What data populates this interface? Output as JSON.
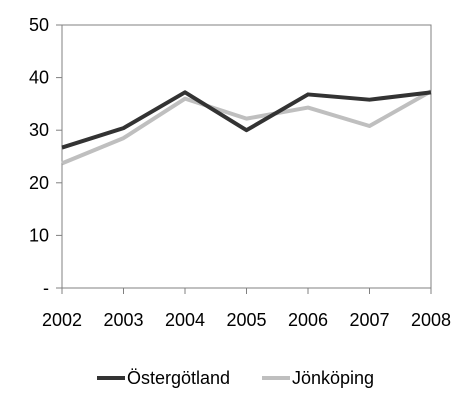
{
  "chart_data": {
    "type": "line",
    "title": "",
    "xlabel": "",
    "ylabel": "",
    "x": [
      2002,
      2003,
      2004,
      2005,
      2006,
      2007,
      2008
    ],
    "x_tick_labels": [
      "2002",
      "2003",
      "2004",
      "2005",
      "2006",
      "2007",
      "2008"
    ],
    "ylim": [
      0,
      50
    ],
    "y_ticks": [
      0,
      10,
      20,
      30,
      40,
      50
    ],
    "y_tick_labels": [
      "-",
      "10",
      "20",
      "30",
      "40",
      "50"
    ],
    "grid": false,
    "legend_position": "bottom",
    "series": [
      {
        "name": "Östergötland",
        "color": "#333333",
        "values": [
          26.7,
          30.4,
          37.2,
          30.0,
          36.8,
          35.8,
          37.2
        ]
      },
      {
        "name": "Jönköping",
        "color": "#bfbfbf",
        "values": [
          23.7,
          28.5,
          36.0,
          32.2,
          34.3,
          30.8,
          37.4
        ]
      }
    ]
  }
}
